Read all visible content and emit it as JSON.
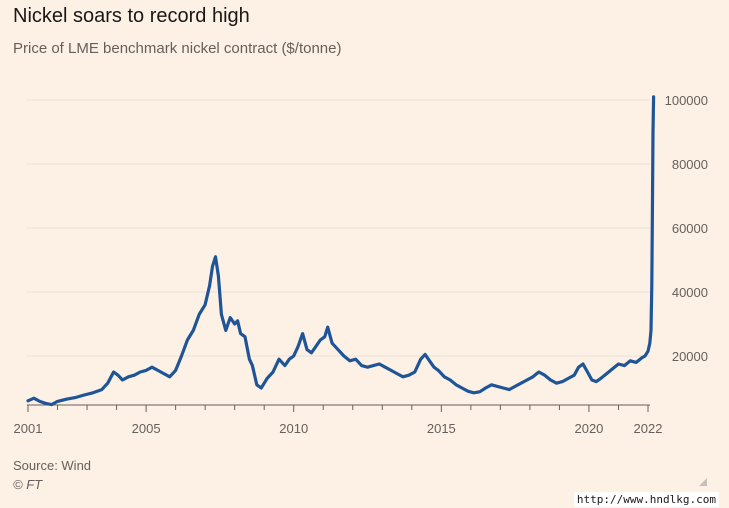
{
  "header": {
    "title": "Nickel soars to record high",
    "subtitle": "Price of LME benchmark nickel contract ($/tonne)"
  },
  "footer": {
    "source": "Source: Wind",
    "copyright": "© FT"
  },
  "watermark": "http://www.hndlkg.com",
  "colors": {
    "background": "#fdf1e6",
    "line": "#1f5597",
    "grid": "#ece1d6",
    "axis": "#66605c"
  },
  "chart_data": {
    "type": "line",
    "title": "Nickel soars to record high",
    "subtitle": "Price of LME benchmark nickel contract ($/tonne)",
    "xlabel": "",
    "ylabel": "",
    "xlim": [
      2001,
      2022.2
    ],
    "ylim": [
      4000,
      102000
    ],
    "y_axis_side": "right",
    "grid": true,
    "x_ticks": [
      2001,
      2005,
      2010,
      2015,
      2020,
      2022
    ],
    "x_tick_labels": [
      "2001",
      "2005",
      "2010",
      "2015",
      "2020",
      "2022"
    ],
    "y_ticks": [
      20000,
      40000,
      60000,
      80000,
      100000
    ],
    "y_tick_labels": [
      "20000",
      "40000",
      "60000",
      "80000",
      "100000"
    ],
    "series": [
      {
        "x": [
          2001.0,
          2001.2,
          2001.4,
          2001.6,
          2001.8,
          2002.0,
          2002.3,
          2002.6,
          2002.9,
          2003.2,
          2003.5,
          2003.7,
          2003.9,
          2004.05,
          2004.2,
          2004.4,
          2004.6,
          2004.8,
          2005.0,
          2005.2,
          2005.4,
          2005.6,
          2005.8,
          2006.0,
          2006.2,
          2006.4,
          2006.6,
          2006.8,
          2007.0,
          2007.15,
          2007.25,
          2007.35,
          2007.45,
          2007.55,
          2007.7,
          2007.85,
          2008.0,
          2008.1,
          2008.2,
          2008.35,
          2008.5,
          2008.6,
          2008.75,
          2008.9,
          2009.0,
          2009.1,
          2009.3,
          2009.5,
          2009.7,
          2009.85,
          2010.0,
          2010.15,
          2010.3,
          2010.45,
          2010.6,
          2010.75,
          2010.9,
          2011.05,
          2011.15,
          2011.3,
          2011.5,
          2011.7,
          2011.9,
          2012.1,
          2012.3,
          2012.5,
          2012.7,
          2012.9,
          2013.1,
          2013.3,
          2013.5,
          2013.7,
          2013.9,
          2014.1,
          2014.3,
          2014.45,
          2014.6,
          2014.75,
          2014.9,
          2015.1,
          2015.3,
          2015.5,
          2015.7,
          2015.9,
          2016.1,
          2016.3,
          2016.5,
          2016.7,
          2016.9,
          2017.1,
          2017.3,
          2017.5,
          2017.7,
          2017.9,
          2018.1,
          2018.3,
          2018.5,
          2018.7,
          2018.9,
          2019.1,
          2019.3,
          2019.5,
          2019.65,
          2019.8,
          2019.95,
          2020.1,
          2020.25,
          2020.4,
          2020.6,
          2020.8,
          2021.0,
          2021.2,
          2021.4,
          2021.6,
          2021.8,
          2021.9,
          2022.0,
          2022.06,
          2022.1,
          2022.13,
          2022.15,
          2022.17,
          2022.19
        ],
        "y": [
          6000,
          6800,
          5800,
          5200,
          4800,
          5800,
          6500,
          7000,
          7800,
          8500,
          9500,
          11500,
          15000,
          14000,
          12500,
          13500,
          14000,
          15000,
          15500,
          16500,
          15500,
          14500,
          13500,
          15500,
          20000,
          25000,
          28000,
          33000,
          36000,
          42000,
          48000,
          51000,
          45000,
          33000,
          28000,
          32000,
          30000,
          31000,
          27000,
          26000,
          19000,
          17000,
          11000,
          10000,
          11500,
          13000,
          15000,
          19000,
          17000,
          19000,
          20000,
          23000,
          27000,
          22000,
          21000,
          23000,
          25000,
          26000,
          29000,
          24000,
          22000,
          20000,
          18500,
          19000,
          17000,
          16500,
          17000,
          17500,
          16500,
          15500,
          14500,
          13500,
          14000,
          15000,
          19000,
          20500,
          18500,
          16500,
          15500,
          13500,
          12500,
          11000,
          10000,
          9000,
          8500,
          8800,
          10000,
          11000,
          10500,
          10000,
          9500,
          10500,
          11500,
          12500,
          13500,
          15000,
          14000,
          12500,
          11500,
          12000,
          13000,
          14000,
          16500,
          17500,
          15000,
          12500,
          12000,
          13000,
          14500,
          16000,
          17500,
          17000,
          18500,
          18000,
          19500,
          20000,
          21500,
          24000,
          28000,
          42000,
          65000,
          90000,
          101000
        ],
        "color": "#1f5597"
      }
    ],
    "annotations": []
  }
}
